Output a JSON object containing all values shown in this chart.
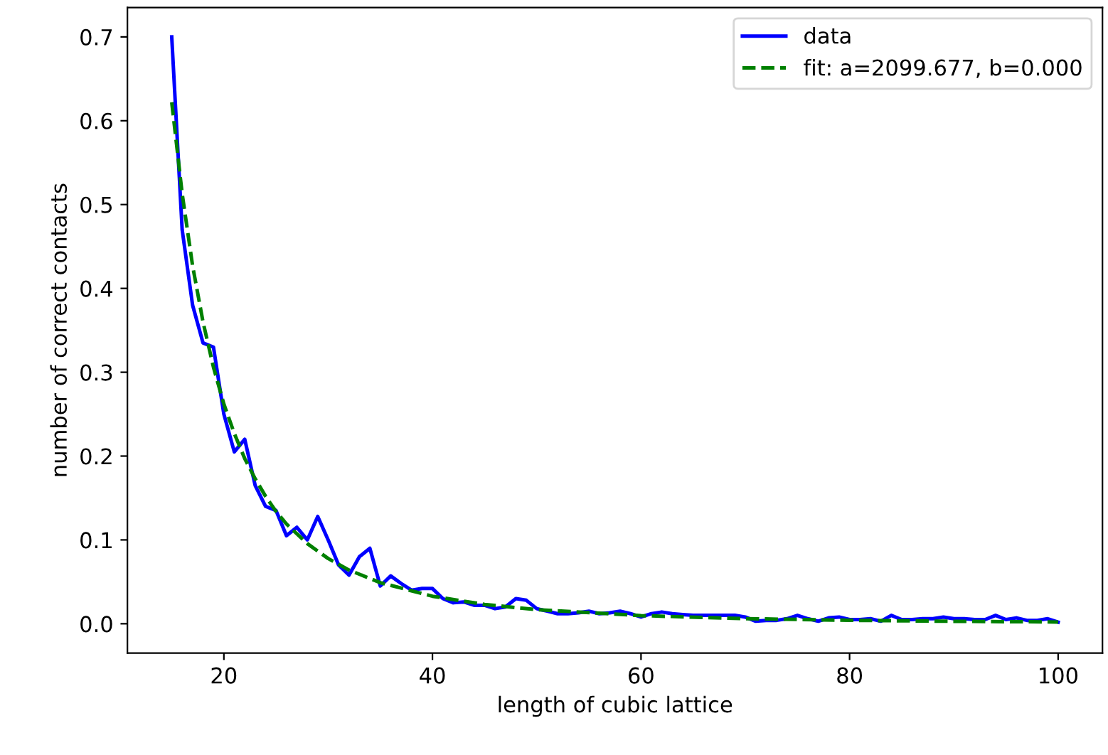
{
  "chart_data": {
    "type": "line",
    "xlabel": "length of cubic lattice",
    "ylabel": "number of correct contacts",
    "xlim": [
      10.75,
      104.25
    ],
    "xticks": [
      20,
      40,
      60,
      80,
      100
    ],
    "ylim": [
      -0.035,
      0.735
    ],
    "yticks": [
      {
        "value": 0.0,
        "label": "0.0"
      },
      0.1,
      0.2,
      0.3,
      0.4,
      0.5,
      0.6,
      0.7
    ],
    "grid": false,
    "legend": "top right",
    "series": [
      {
        "name": "data",
        "color": "#0000ff",
        "line_style": "solid",
        "x": [
          15,
          16,
          17,
          18,
          19,
          20,
          21,
          22,
          23,
          24,
          25,
          26,
          27,
          28,
          29,
          30,
          31,
          32,
          33,
          34,
          35,
          36,
          37,
          38,
          39,
          40,
          41,
          42,
          43,
          44,
          45,
          46,
          47,
          48,
          49,
          50,
          51,
          52,
          53,
          54,
          55,
          56,
          57,
          58,
          59,
          60,
          61,
          62,
          63,
          64,
          65,
          66,
          67,
          68,
          69,
          70,
          71,
          72,
          73,
          74,
          75,
          76,
          77,
          78,
          79,
          80,
          81,
          82,
          83,
          84,
          85,
          86,
          87,
          88,
          89,
          90,
          91,
          92,
          93,
          94,
          95,
          96,
          97,
          98,
          99,
          100
        ],
        "values": [
          0.7,
          0.47,
          0.38,
          0.335,
          0.33,
          0.25,
          0.205,
          0.22,
          0.165,
          0.14,
          0.135,
          0.105,
          0.115,
          0.1,
          0.128,
          0.1,
          0.07,
          0.058,
          0.08,
          0.09,
          0.045,
          0.057,
          0.048,
          0.04,
          0.042,
          0.042,
          0.03,
          0.025,
          0.026,
          0.022,
          0.022,
          0.018,
          0.02,
          0.03,
          0.028,
          0.018,
          0.015,
          0.012,
          0.012,
          0.013,
          0.015,
          0.012,
          0.013,
          0.015,
          0.012,
          0.008,
          0.012,
          0.014,
          0.012,
          0.011,
          0.01,
          0.01,
          0.01,
          0.01,
          0.01,
          0.008,
          0.003,
          0.004,
          0.004,
          0.006,
          0.01,
          0.006,
          0.003,
          0.007,
          0.008,
          0.005,
          0.005,
          0.006,
          0.003,
          0.01,
          0.005,
          0.005,
          0.006,
          0.006,
          0.008,
          0.006,
          0.006,
          0.005,
          0.005,
          0.01,
          0.005,
          0.007,
          0.004,
          0.004,
          0.006,
          0.002
        ]
      },
      {
        "name": "fit: a=2099.677, b=0.000",
        "color": "#008000",
        "line_style": "dashed",
        "x": [
          15,
          16,
          17,
          18,
          19,
          20,
          21,
          22,
          23,
          24,
          25,
          26,
          28,
          30,
          32,
          35,
          40,
          45,
          50,
          60,
          70,
          80,
          90,
          100
        ],
        "values": [
          0.622,
          0.513,
          0.427,
          0.36,
          0.306,
          0.262,
          0.227,
          0.197,
          0.173,
          0.152,
          0.134,
          0.119,
          0.0956,
          0.0778,
          0.064,
          0.049,
          0.0328,
          0.023,
          0.0168,
          0.0097,
          0.0061,
          0.0041,
          0.0029,
          0.0021
        ]
      }
    ]
  }
}
